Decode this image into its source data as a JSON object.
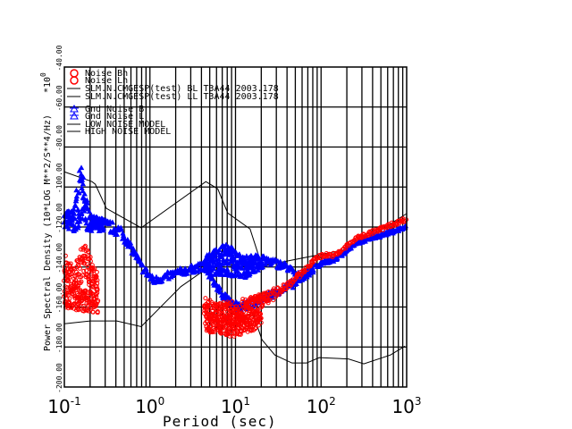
{
  "chart_data": {
    "type": "scatter",
    "xlabel": "Period (sec)",
    "ylabel": "Power Spectral Density (10*LOG M**2/S**4/Hz)",
    "y_multiplier": "*10",
    "y_multiplier_exp": "0",
    "xscale": "log",
    "xlim": [
      0.1,
      1000
    ],
    "ylim": [
      -200,
      -40
    ],
    "x_ticks": [
      {
        "base": "10",
        "exp": "-1"
      },
      {
        "base": "10",
        "exp": "0"
      },
      {
        "base": "10",
        "exp": "1"
      },
      {
        "base": "10",
        "exp": "2"
      },
      {
        "base": "10",
        "exp": "3"
      }
    ],
    "y_ticks": [
      {
        "value": -200,
        "label": "-200.00"
      },
      {
        "value": -180,
        "label": "-180.00"
      },
      {
        "value": -160,
        "label": "-160.00"
      },
      {
        "value": -140,
        "label": "-140.00"
      },
      {
        "value": -120,
        "label": "-120.00"
      },
      {
        "value": -100,
        "label": "-100.00"
      },
      {
        "value": -80,
        "label": "-80.00"
      },
      {
        "value": -60,
        "label": "-60.00"
      },
      {
        "value": -40,
        "label": "-40.00"
      }
    ],
    "grid": true,
    "legend_position": "top-left",
    "legend": [
      {
        "label": "Noise Bh",
        "marker": "circle",
        "color": "#ff0000"
      },
      {
        "label": "Noise Lh",
        "marker": "circle",
        "color": "#ff0000"
      },
      {
        "label": "SLM.N.CMGESP(test) BL T3A44 2003.178",
        "marker": "line",
        "color": "#000000"
      },
      {
        "label": "SLM.N.CMGESP(test) LL T3A44 2003.178",
        "marker": "line",
        "color": "#000000"
      },
      {
        "label": "Gnd Noise B",
        "marker": "triangle",
        "color": "#0000ff"
      },
      {
        "label": "Gnd Noise L",
        "marker": "triangle",
        "color": "#0000ff"
      },
      {
        "label": "LOW NOISE MODEL",
        "marker": "line",
        "color": "#000000"
      },
      {
        "label": "HIGH NOISE MODEL",
        "marker": "line",
        "color": "#000000"
      }
    ],
    "models": [
      {
        "name": "LOW NOISE MODEL",
        "color": "#000000",
        "points": [
          [
            0.1,
            -168.4
          ],
          [
            0.2,
            -167
          ],
          [
            0.41,
            -167
          ],
          [
            0.79,
            -169.8
          ],
          [
            2.3,
            -149.8
          ],
          [
            4.2,
            -142
          ],
          [
            5,
            -141.8
          ],
          [
            6.8,
            -153
          ],
          [
            9.1,
            -162.7
          ],
          [
            11.7,
            -166
          ],
          [
            15.8,
            -162.7
          ],
          [
            20.4,
            -176.4
          ],
          [
            28.8,
            -184
          ],
          [
            45.7,
            -188
          ],
          [
            67.6,
            -188
          ],
          [
            95.5,
            -185.3
          ],
          [
            209,
            -186
          ],
          [
            316,
            -188.4
          ],
          [
            646,
            -184
          ],
          [
            955,
            -179.6
          ]
        ]
      },
      {
        "name": "HIGH NOISE MODEL",
        "color": "#000000",
        "points": [
          [
            0.1,
            -92.4
          ],
          [
            0.21,
            -97.3
          ],
          [
            0.23,
            -98.6
          ],
          [
            0.31,
            -110.7
          ],
          [
            0.79,
            -120.4
          ],
          [
            4.5,
            -97.3
          ],
          [
            6.2,
            -100.9
          ],
          [
            8.1,
            -113
          ],
          [
            14.8,
            -121
          ],
          [
            20.4,
            -139.5
          ],
          [
            224,
            -130.7
          ],
          [
            1000,
            -113.3
          ]
        ]
      }
    ],
    "series": [
      {
        "name": "Gnd Noise B",
        "marker": "triangle",
        "color": "#0000ff",
        "segments": [
          [
            [
              0.1,
              -116,
              4
            ],
            [
              0.13,
              -117,
              6
            ],
            [
              0.15,
              -103,
              16
            ],
            [
              0.17,
              -110,
              12
            ],
            [
              0.2,
              -118,
              4
            ],
            [
              0.3,
              -119,
              3
            ],
            [
              0.45,
              -122,
              3
            ],
            [
              0.6,
              -130,
              2
            ],
            [
              0.8,
              -140,
              2
            ],
            [
              1.1,
              -147,
              2
            ],
            [
              1.5,
              -145,
              2
            ],
            [
              2.5,
              -142,
              2
            ],
            [
              4,
              -140,
              2
            ],
            [
              5,
              -138,
              6
            ],
            [
              8,
              -136,
              8
            ],
            [
              12,
              -140,
              6
            ],
            [
              18,
              -138,
              4
            ],
            [
              25,
              -137,
              2
            ],
            [
              40,
              -140,
              2
            ],
            [
              55,
              -145,
              2
            ],
            [
              75,
              -142,
              2
            ],
            [
              100,
              -138,
              1
            ],
            [
              150,
              -136,
              1
            ],
            [
              250,
              -128,
              1
            ],
            [
              1000,
              -120,
              1
            ]
          ]
        ]
      },
      {
        "name": "Gnd Noise L",
        "marker": "triangle",
        "color": "#0000ff",
        "segments": [
          [
            [
              4.5,
              -141,
              2
            ],
            [
              6,
              -150,
              2
            ],
            [
              9,
              -159,
              2
            ],
            [
              12,
              -160,
              2
            ],
            [
              20,
              -156,
              2
            ],
            [
              35,
              -151,
              2
            ],
            [
              55,
              -147,
              2
            ],
            [
              80,
              -141,
              1
            ]
          ]
        ]
      },
      {
        "name": "Noise Bh",
        "marker": "circle",
        "color": "#ff0000",
        "segments": [
          [
            [
              0.1,
              -140,
              7
            ],
            [
              0.13,
              -148,
              7
            ],
            [
              0.17,
              -136,
              9
            ],
            [
              0.2,
              -142,
              8
            ],
            [
              0.25,
              -148,
              4
            ]
          ],
          [
            [
              4.3,
              -160,
              5
            ],
            [
              6,
              -163,
              5
            ],
            [
              10,
              -163,
              6
            ],
            [
              15,
              -160,
              5
            ],
            [
              25,
              -155,
              3
            ],
            [
              40,
              -149,
              2
            ],
            [
              60,
              -143,
              1
            ],
            [
              90,
              -135,
              1
            ],
            [
              110,
              -134,
              1
            ],
            [
              150,
              -134,
              1
            ],
            [
              250,
              -126,
              1
            ],
            [
              1000,
              -116,
              1
            ]
          ]
        ]
      },
      {
        "name": "Noise Lh",
        "marker": "circle",
        "color": "#ff0000",
        "segments": [
          [
            [
              0.1,
              -155,
              6
            ],
            [
              0.25,
              -158,
              5
            ]
          ],
          [
            [
              4.5,
              -168,
              5
            ],
            [
              10,
              -170,
              5
            ],
            [
              20,
              -166,
              4
            ]
          ]
        ]
      }
    ]
  }
}
